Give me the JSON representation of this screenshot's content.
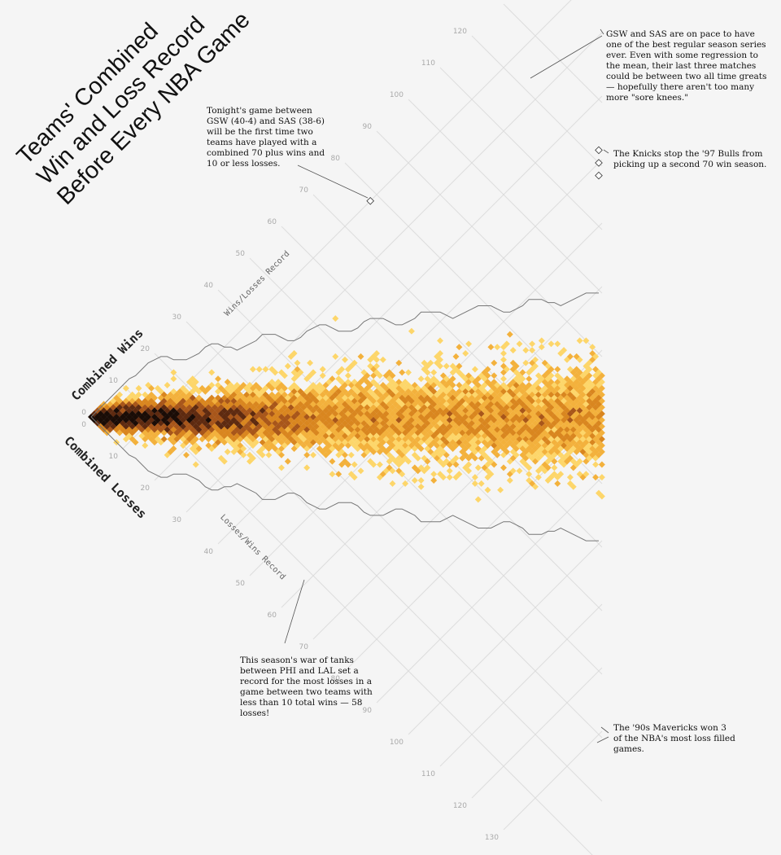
{
  "title": {
    "line1": "Teams' Combined",
    "line2": "Win and Loss Record",
    "line3": "Before Every NBA Game"
  },
  "axes": {
    "wins_title": "Combined Wins",
    "losses_title": "Combined Losses",
    "wins_sub": "Wins/Losses Record",
    "losses_sub": "Losses/Wins Record"
  },
  "annotations": {
    "gsw_sas_record": "Tonight's game between GSW (40-4) and SAS (38-6) will be the first time two teams have played with a combined 70 plus wins and 10 or less losses.",
    "gsw_sas_pace": "GSW and SAS are on pace to have one of the best regular season series ever. Even with some regression to the mean, their last three matches could be between two all time greats — hopefully there aren't too many more \"sore knees.\"",
    "knicks_bulls": "The Knicks stop the '97 Bulls from picking up a second 70 win season.",
    "phi_lal": "This season's war of tanks between PHI and LAL set a record for the most losses in a game between two teams with less than 10 total wins — 58 losses!",
    "mavericks": "The '90s Mavericks won 3 of the NBA's most loss filled games."
  },
  "chart_data": {
    "type": "heatmap",
    "title": "Teams' Combined Win and Loss Record Before Every NBA Game",
    "x_label": "Combined Wins",
    "y_label": "Combined Losses",
    "x_ticks": [
      0,
      10,
      20,
      30,
      40,
      50,
      60,
      70,
      80,
      90,
      100,
      110,
      120
    ],
    "y_ticks": [
      0,
      10,
      20,
      30,
      40,
      50,
      60,
      70,
      80,
      90,
      100,
      110,
      120,
      130
    ],
    "max_games_sum": 162,
    "color_scale": [
      "#fdd66a",
      "#f3b13c",
      "#d9861f",
      "#a8561a",
      "#5e2a10",
      "#1a0c06"
    ],
    "highlighted_games": [
      {
        "wins": 78,
        "losses": 10
      },
      {
        "wins": 118,
        "losses": 42
      },
      {
        "wins": 122,
        "losses": 38
      },
      {
        "wins": 120,
        "losses": 40
      }
    ]
  },
  "colors": {
    "background": "#f5f5f5",
    "grid": "#dddddd",
    "outline": "#777777"
  }
}
